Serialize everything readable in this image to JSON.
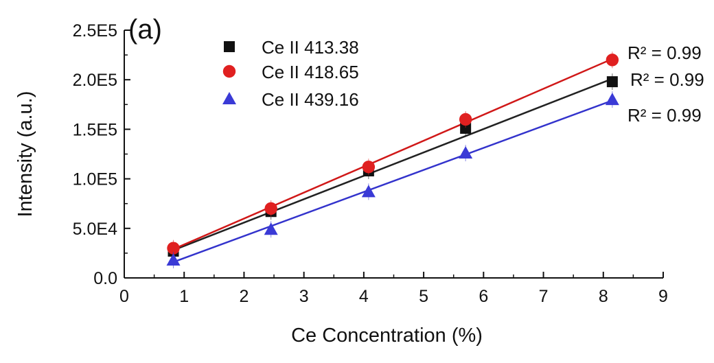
{
  "chart_data": {
    "type": "scatter",
    "panel_label": "(a)",
    "xlabel": "Ce Concentration (%)",
    "ylabel": "Intensity (a.u.)",
    "xlim": [
      0,
      9
    ],
    "ylim": [
      0,
      250000
    ],
    "xticks": [
      0,
      1,
      2,
      3,
      4,
      5,
      6,
      7,
      8,
      9
    ],
    "xtick_labels": [
      "0",
      "1",
      "2",
      "3",
      "4",
      "5",
      "6",
      "7",
      "8",
      "9"
    ],
    "yticks": [
      0,
      50000,
      100000,
      150000,
      200000,
      250000
    ],
    "ytick_labels": [
      "0.0",
      "5.0E4",
      "1.0E5",
      "1.5E5",
      "2.0E5",
      "2.5E5"
    ],
    "grid": false,
    "legend_position": "top-left",
    "fit_lines": true,
    "series": [
      {
        "name": "Ce II 413.38",
        "marker": "square",
        "color": "#111111",
        "line_color": "#222222",
        "x": [
          0.82,
          2.45,
          4.08,
          5.7,
          8.15
        ],
        "y": [
          27000,
          67000,
          108000,
          151000,
          198000
        ],
        "fit": [
          [
            0.82,
            28000
          ],
          [
            8.15,
            201000
          ]
        ],
        "r2_label": "R² = 0.99"
      },
      {
        "name": "Ce II 418.65",
        "marker": "circle",
        "color": "#e02020",
        "line_color": "#d01818",
        "x": [
          0.82,
          2.45,
          4.08,
          5.7,
          8.15
        ],
        "y": [
          30000,
          70000,
          112000,
          160000,
          220000
        ],
        "fit": [
          [
            0.82,
            29000
          ],
          [
            8.15,
            221000
          ]
        ],
        "r2_label": "R² = 0.99"
      },
      {
        "name": "Ce II 439.16",
        "marker": "triangle",
        "color": "#3a3ad6",
        "line_color": "#3333cc",
        "x": [
          0.82,
          2.45,
          4.08,
          5.7,
          8.15
        ],
        "y": [
          18000,
          49000,
          87000,
          126000,
          180000
        ],
        "fit": [
          [
            0.82,
            16000
          ],
          [
            8.15,
            179000
          ]
        ],
        "r2_label": "R² = 0.99"
      }
    ]
  }
}
